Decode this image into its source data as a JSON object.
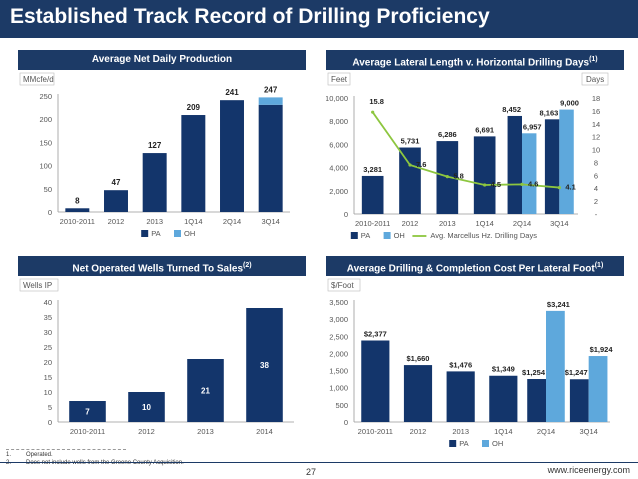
{
  "page": {
    "title": "Established Track Record of Drilling Proficiency",
    "page_number": "27",
    "url": "www.riceenergy.com",
    "footnotes": [
      {
        "num": "1.",
        "text": "Operated."
      },
      {
        "num": "2.",
        "text": "Does not include wells from the Greene County Acquisition."
      }
    ]
  },
  "colors": {
    "navy": "#1c3a66",
    "pa": "#13356b",
    "oh": "#5ea8dc",
    "line": "#8dc63f",
    "axis_text": "#555555",
    "grid_axis": "#999999"
  },
  "chart_data": [
    {
      "id": "production",
      "type": "bar",
      "stacked": true,
      "title": "Average Net Daily Production",
      "ylabel": "MMcfe/d",
      "categories": [
        "2010-2011",
        "2012",
        "2013",
        "1Q14",
        "2Q14",
        "3Q14"
      ],
      "series": [
        {
          "name": "PA",
          "values": [
            8,
            47,
            127,
            209,
            241,
            231
          ]
        },
        {
          "name": "OH",
          "values": [
            0,
            0,
            0,
            0,
            0,
            16
          ]
        }
      ],
      "data_labels": [
        "8",
        "47",
        "127",
        "209",
        "241",
        "247"
      ],
      "ylim": [
        0,
        250
      ],
      "yticks": [
        "0",
        "50",
        "100",
        "150",
        "200",
        "250"
      ],
      "legend": [
        "PA",
        "OH"
      ],
      "legend_position": "bottom"
    },
    {
      "id": "lateral",
      "type": "bar",
      "title": "Average Lateral Length v. Horizontal Drilling Days",
      "title_superscript": "(1)",
      "ylabel": "Feet",
      "y2label": "Days",
      "categories": [
        "2010-2011",
        "2012",
        "2013",
        "1Q14",
        "2Q14",
        "3Q14"
      ],
      "series": [
        {
          "name": "PA",
          "values": [
            3281,
            5731,
            6286,
            6691,
            8452,
            8163
          ],
          "labels": [
            "3,281",
            "5,731",
            "6,286",
            "6,691",
            "8,452",
            "8,163"
          ]
        },
        {
          "name": "OH",
          "values": [
            null,
            null,
            null,
            null,
            6957,
            9000
          ],
          "labels": [
            "",
            "",
            "",
            "",
            "6,957",
            "9,000"
          ]
        }
      ],
      "line": {
        "name": "Avg. Marcellus Hz. Drilling Days",
        "values": [
          15.8,
          7.6,
          5.8,
          4.5,
          4.6,
          4.1
        ],
        "labels": [
          "15.8",
          "7.6",
          "5.8",
          "4.5",
          "4.6",
          "4.1"
        ]
      },
      "ylim": [
        0,
        10000
      ],
      "yticks": [
        "0",
        "2,000",
        "4,000",
        "6,000",
        "8,000",
        "10,000"
      ],
      "y2lim": [
        0,
        18
      ],
      "y2ticks": [
        "-",
        "2",
        "4",
        "6",
        "8",
        "10",
        "12",
        "14",
        "16",
        "18"
      ],
      "legend": [
        "PA",
        "OH",
        "Avg. Marcellus Hz. Drilling Days"
      ],
      "legend_position": "bottom"
    },
    {
      "id": "wells",
      "type": "bar",
      "title": "Net Operated Wells Turned To Sales",
      "title_superscript": "(2)",
      "ylabel": "Wells IP",
      "categories": [
        "2010-2011",
        "2012",
        "2013",
        "2014"
      ],
      "series": [
        {
          "name": "",
          "values": [
            7,
            10,
            21,
            38
          ],
          "labels": [
            "7",
            "10",
            "21",
            "38"
          ]
        }
      ],
      "ylim": [
        0,
        40
      ],
      "yticks": [
        "0",
        "5",
        "10",
        "15",
        "20",
        "25",
        "30",
        "35",
        "40"
      ]
    },
    {
      "id": "cost",
      "type": "bar",
      "title": "Average Drilling & Completion Cost Per Lateral Foot",
      "title_superscript": "(1)",
      "ylabel": "$/Foot",
      "categories": [
        "2010-2011",
        "2012",
        "2013",
        "1Q14",
        "2Q14",
        "3Q14"
      ],
      "series": [
        {
          "name": "PA",
          "values": [
            2377,
            1660,
            1476,
            1349,
            1254,
            1247
          ],
          "labels": [
            "$2,377",
            "$1,660",
            "$1,476",
            "$1,349",
            "$1,254",
            "$1,247"
          ]
        },
        {
          "name": "OH",
          "values": [
            null,
            null,
            null,
            null,
            3241,
            1924
          ],
          "labels": [
            "",
            "",
            "",
            "",
            "$3,241",
            "$1,924"
          ]
        }
      ],
      "ylim": [
        0,
        3500
      ],
      "yticks": [
        "0",
        "500",
        "1,000",
        "1,500",
        "2,000",
        "2,500",
        "3,000",
        "3,500"
      ],
      "legend": [
        "PA",
        "OH"
      ],
      "legend_position": "bottom"
    }
  ]
}
